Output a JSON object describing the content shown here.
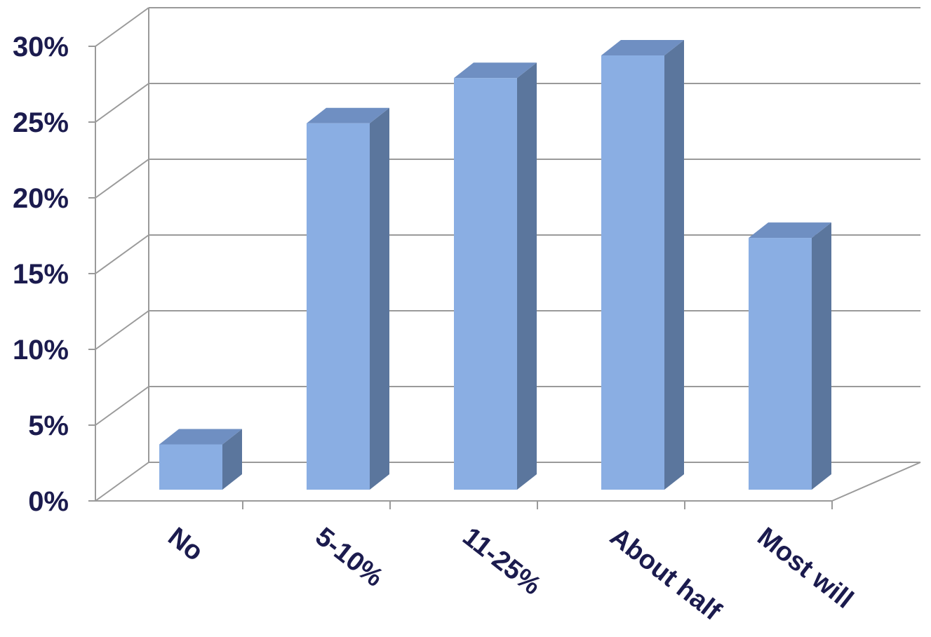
{
  "chart_data": {
    "type": "bar",
    "style": "3d-column",
    "categories": [
      "No",
      "5-10%",
      "11-25%",
      "About half",
      "Most will"
    ],
    "values": [
      3,
      24.3,
      27.3,
      28.8,
      16.7
    ],
    "ylim": [
      0,
      30
    ],
    "ytick_step": 5,
    "ytick_format": "percent",
    "grid": true,
    "title": "",
    "xlabel": "",
    "ylabel": "",
    "colors": {
      "bar_front": "#8aaee3",
      "bar_side": "#5b769d",
      "bar_top": "#6f8fc2",
      "grid": "#9a9a9a",
      "text": "#1b1b4e"
    }
  }
}
